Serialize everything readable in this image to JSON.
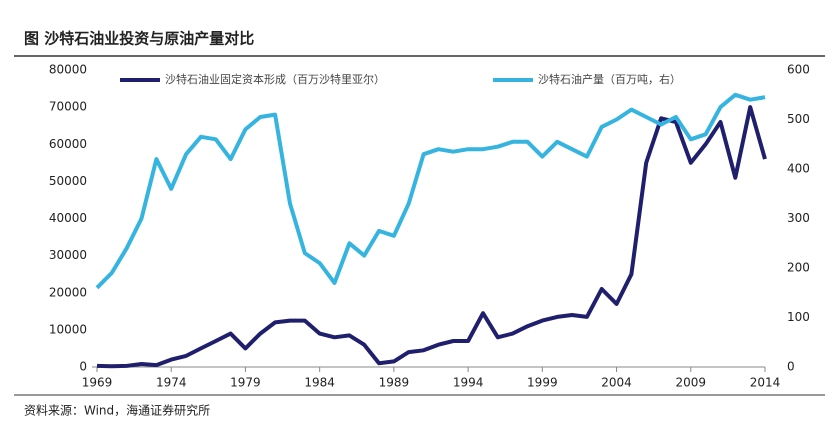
{
  "chart_data": {
    "type": "line",
    "title": "图  沙特石油业投资与原油产量对比",
    "source": "资料来源：Wind，海通证券研究所",
    "x": [
      1969,
      1970,
      1971,
      1972,
      1973,
      1974,
      1975,
      1976,
      1977,
      1978,
      1979,
      1980,
      1981,
      1982,
      1983,
      1984,
      1985,
      1986,
      1987,
      1988,
      1989,
      1990,
      1991,
      1992,
      1993,
      1994,
      1995,
      1996,
      1997,
      1998,
      1999,
      2000,
      2001,
      2002,
      2003,
      2004,
      2005,
      2006,
      2007,
      2008,
      2009,
      2010,
      2011,
      2012,
      2013,
      2014
    ],
    "xlim": [
      1969,
      2014
    ],
    "xticks": [
      1969,
      1974,
      1979,
      1984,
      1989,
      1994,
      1999,
      2004,
      2009,
      2014
    ],
    "ylim": [
      0,
      80000
    ],
    "yticks": [
      0,
      10000,
      20000,
      30000,
      40000,
      50000,
      60000,
      70000,
      80000
    ],
    "y2lim": [
      0,
      600
    ],
    "y2ticks": [
      0,
      100,
      200,
      300,
      400,
      500,
      600
    ],
    "series": [
      {
        "name": "沙特石油业固定资本形成（百万沙特里亚尔）",
        "color": "#1f1f6e",
        "values": [
          300,
          200,
          300,
          800,
          500,
          2000,
          3000,
          5000,
          7000,
          9000,
          5000,
          9000,
          12000,
          12500,
          12500,
          9000,
          8000,
          8500,
          6000,
          1000,
          1500,
          4000,
          4500,
          6000,
          7000,
          7000,
          14500,
          8000,
          9000,
          11000,
          12500,
          13500,
          14000,
          13500,
          21000,
          17000,
          25000,
          55000,
          67000,
          66000,
          55000,
          60000,
          66000,
          51000,
          70000,
          56000
        ]
      },
      {
        "name": "沙特石油产量（百万吨，右）",
        "color": "#35b4e0",
        "axis": "y2",
        "values": [
          160,
          190,
          240,
          300,
          420,
          360,
          430,
          465,
          460,
          420,
          480,
          505,
          510,
          330,
          230,
          210,
          170,
          250,
          225,
          275,
          265,
          330,
          430,
          440,
          435,
          440,
          440,
          445,
          455,
          455,
          425,
          455,
          440,
          425,
          485,
          500,
          520,
          505,
          490,
          505,
          460,
          470,
          525,
          550,
          540,
          545
        ]
      }
    ]
  }
}
